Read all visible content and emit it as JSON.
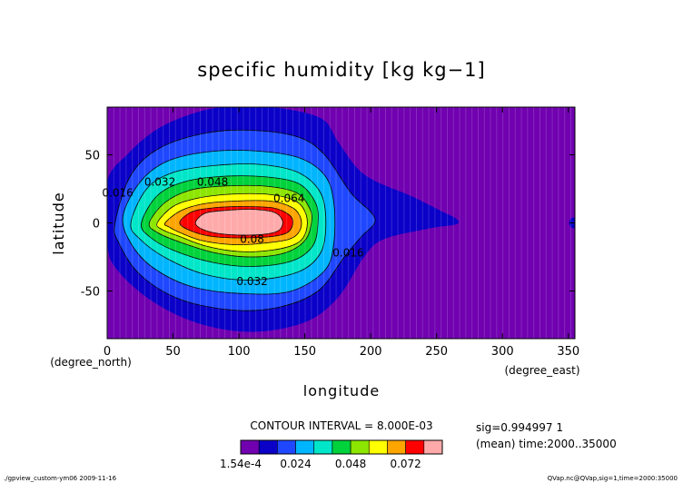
{
  "chart_data": {
    "type": "heatmap",
    "title": "specific humidity [kg kg−1]",
    "xlabel": "longitude",
    "ylabel": "latitude",
    "x_unit": "(degree_east)",
    "y_unit": "(degree_north)",
    "xlim": [
      0,
      355
    ],
    "ylim": [
      -85,
      85
    ],
    "x_ticks": [
      0,
      50,
      100,
      150,
      200,
      250,
      300,
      350
    ],
    "y_ticks": [
      -50,
      0,
      50
    ],
    "grid": true,
    "contour_interval_text": "CONTOUR INTERVAL = 8.000E-03",
    "contour_labels": [
      {
        "text": "0.016",
        "x": 8,
        "y": 22
      },
      {
        "text": "0.032",
        "x": 40,
        "y": 30
      },
      {
        "text": "0.048",
        "x": 80,
        "y": 30
      },
      {
        "text": "0.064",
        "x": 138,
        "y": 18
      },
      {
        "text": "0.08",
        "x": 110,
        "y": -12
      },
      {
        "text": "0.032",
        "x": 110,
        "y": -43
      },
      {
        "text": "0.016",
        "x": 183,
        "y": -22
      }
    ],
    "contours": [
      {
        "level": 0.0002,
        "color": "#0a00c8",
        "points": [
          [
            0,
            30
          ],
          [
            15,
            50
          ],
          [
            40,
            70
          ],
          [
            75,
            83
          ],
          [
            110,
            86
          ],
          [
            145,
            82
          ],
          [
            165,
            75
          ],
          [
            175,
            60
          ],
          [
            190,
            40
          ],
          [
            205,
            30
          ],
          [
            230,
            20
          ],
          [
            255,
            8
          ],
          [
            265,
            3
          ],
          [
            265,
            -1
          ],
          [
            245,
            -4
          ],
          [
            210,
            -12
          ],
          [
            195,
            -25
          ],
          [
            175,
            -55
          ],
          [
            150,
            -73
          ],
          [
            110,
            -80
          ],
          [
            70,
            -74
          ],
          [
            35,
            -58
          ],
          [
            8,
            -35
          ],
          [
            0,
            -15
          ]
        ]
      },
      {
        "level": 0.008,
        "color": "#1f47ff",
        "points": [
          [
            6,
            0
          ],
          [
            18,
            35
          ],
          [
            40,
            55
          ],
          [
            75,
            66
          ],
          [
            110,
            68
          ],
          [
            145,
            63
          ],
          [
            165,
            50
          ],
          [
            185,
            22
          ],
          [
            200,
            8
          ],
          [
            203,
            0
          ],
          [
            193,
            -10
          ],
          [
            180,
            -25
          ],
          [
            160,
            -50
          ],
          [
            130,
            -62
          ],
          [
            95,
            -64
          ],
          [
            55,
            -56
          ],
          [
            25,
            -38
          ],
          [
            9,
            -15
          ]
        ]
      },
      {
        "level": 0.016,
        "color": "#00b5ff",
        "points": [
          [
            12,
            5
          ],
          [
            25,
            30
          ],
          [
            45,
            45
          ],
          [
            75,
            52
          ],
          [
            110,
            53
          ],
          [
            145,
            48
          ],
          [
            165,
            35
          ],
          [
            172,
            15
          ],
          [
            172,
            -15
          ],
          [
            165,
            -35
          ],
          [
            140,
            -50
          ],
          [
            105,
            -52
          ],
          [
            65,
            -47
          ],
          [
            35,
            -33
          ],
          [
            18,
            -15
          ]
        ]
      },
      {
        "level": 0.024,
        "color": "#00e6c8",
        "points": [
          [
            18,
            0
          ],
          [
            30,
            25
          ],
          [
            50,
            37
          ],
          [
            80,
            42
          ],
          [
            115,
            43
          ],
          [
            145,
            37
          ],
          [
            162,
            22
          ],
          [
            166,
            0
          ],
          [
            162,
            -22
          ],
          [
            145,
            -36
          ],
          [
            110,
            -42
          ],
          [
            75,
            -38
          ],
          [
            45,
            -26
          ],
          [
            25,
            -12
          ]
        ]
      },
      {
        "level": 0.032,
        "color": "#00d23c",
        "points": [
          [
            26,
            0
          ],
          [
            38,
            20
          ],
          [
            58,
            30
          ],
          [
            85,
            34
          ],
          [
            118,
            34
          ],
          [
            145,
            29
          ],
          [
            158,
            15
          ],
          [
            160,
            0
          ],
          [
            156,
            -17
          ],
          [
            140,
            -28
          ],
          [
            110,
            -32
          ],
          [
            80,
            -29
          ],
          [
            50,
            -20
          ],
          [
            32,
            -10
          ]
        ]
      },
      {
        "level": 0.04,
        "color": "#8ce600",
        "points": [
          [
            32,
            0
          ],
          [
            44,
            15
          ],
          [
            63,
            24
          ],
          [
            88,
            27
          ],
          [
            120,
            27
          ],
          [
            144,
            22
          ],
          [
            154,
            10
          ],
          [
            155,
            0
          ],
          [
            150,
            -13
          ],
          [
            135,
            -22
          ],
          [
            110,
            -25
          ],
          [
            82,
            -22
          ],
          [
            55,
            -14
          ],
          [
            38,
            -7
          ]
        ]
      },
      {
        "level": 0.048,
        "color": "#ffff00",
        "points": [
          [
            38,
            0
          ],
          [
            50,
            12
          ],
          [
            68,
            18
          ],
          [
            92,
            21
          ],
          [
            122,
            21
          ],
          [
            143,
            16
          ],
          [
            151,
            6
          ],
          [
            151,
            -6
          ],
          [
            144,
            -15
          ],
          [
            125,
            -20
          ],
          [
            100,
            -21
          ],
          [
            75,
            -17
          ],
          [
            55,
            -10
          ],
          [
            42,
            -5
          ]
        ]
      },
      {
        "level": 0.056,
        "color": "#ffa500",
        "points": [
          [
            44,
            0
          ],
          [
            56,
            9
          ],
          [
            73,
            14
          ],
          [
            96,
            16
          ],
          [
            124,
            16
          ],
          [
            141,
            11
          ],
          [
            147,
            3
          ],
          [
            146,
            -6
          ],
          [
            138,
            -12
          ],
          [
            118,
            -15
          ],
          [
            96,
            -16
          ],
          [
            72,
            -13
          ],
          [
            55,
            -7
          ],
          [
            47,
            -3
          ]
        ]
      },
      {
        "level": 0.064,
        "color": "#ff0000",
        "points": [
          [
            55,
            0
          ],
          [
            64,
            8
          ],
          [
            80,
            11
          ],
          [
            102,
            12
          ],
          [
            126,
            11
          ],
          [
            138,
            6
          ],
          [
            141,
            0
          ],
          [
            137,
            -7
          ],
          [
            125,
            -10
          ],
          [
            103,
            -11
          ],
          [
            80,
            -10
          ],
          [
            64,
            -6
          ]
        ]
      },
      {
        "level": 0.072,
        "color": "#ffaaaa",
        "points": [
          [
            67,
            0
          ],
          [
            74,
            7
          ],
          [
            88,
            9
          ],
          [
            108,
            10
          ],
          [
            126,
            8
          ],
          [
            133,
            2
          ],
          [
            131,
            -5
          ],
          [
            122,
            -8
          ],
          [
            104,
            -9
          ],
          [
            86,
            -8
          ],
          [
            73,
            -5
          ]
        ]
      }
    ],
    "colorbar": {
      "colors": [
        "#7000b0",
        "#0a00c8",
        "#1f47ff",
        "#00b5ff",
        "#00e6c8",
        "#00d23c",
        "#8ce600",
        "#ffff00",
        "#ffa500",
        "#ff0000",
        "#ffaaaa"
      ],
      "tick_labels": [
        "1.54e-4",
        "0.024",
        "0.048",
        "0.072"
      ]
    }
  },
  "info": {
    "sig": "sig=0.994997 1",
    "time": "(mean) time:2000..35000"
  },
  "footer": {
    "left": "./gpview_custom-ym06  2009-11-16",
    "right": "QVap.nc@QVap,sig=1,time=2000:35000"
  }
}
